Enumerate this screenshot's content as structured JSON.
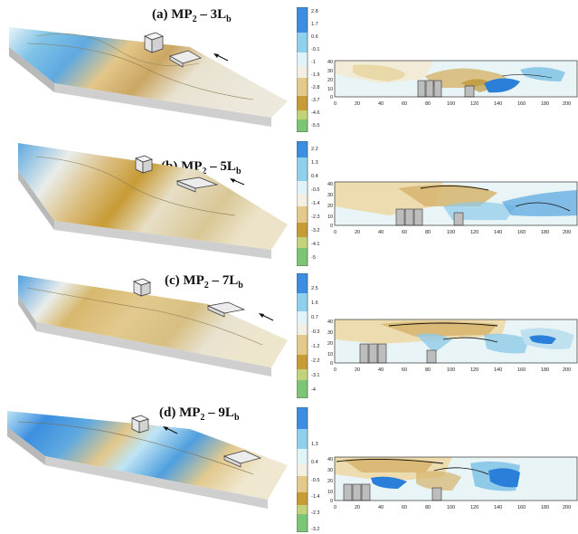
{
  "panels": [
    {
      "letter": "(a)",
      "mp": "MP",
      "mp_sub": "2",
      "spacing": "3L",
      "spacing_sub": "b",
      "colorbar": [
        "2.8",
        "1.7",
        "0.6",
        "-0.1",
        "-1",
        "-1.9",
        "-2.8",
        "-3.7",
        "-4.6",
        "-5.5"
      ],
      "y_ticks": [
        "40",
        "30",
        "20",
        "10",
        "0"
      ],
      "x_ticks": [
        "0",
        "20",
        "40",
        "60",
        "80",
        "100",
        "120",
        "140",
        "160",
        "180",
        "200"
      ]
    },
    {
      "letter": "(b)",
      "mp": "MP",
      "mp_sub": "2",
      "spacing": "5L",
      "spacing_sub": "b",
      "colorbar": [
        "2.2",
        "1.3",
        "0.4",
        "-0.5",
        "-1.4",
        "-2.3",
        "-3.2",
        "-4.1",
        "-5"
      ],
      "y_ticks": [
        "40",
        "30",
        "20",
        "10",
        "0"
      ],
      "x_ticks": [
        "0",
        "20",
        "40",
        "60",
        "80",
        "100",
        "120",
        "140",
        "160",
        "180",
        "200"
      ]
    },
    {
      "letter": "(c)",
      "mp": "MP",
      "mp_sub": "2",
      "spacing": "7L",
      "spacing_sub": "b",
      "colorbar": [
        "2.5",
        "1.6",
        "0.7",
        "-0.3",
        "-1.2",
        "-2.2",
        "-3.1",
        "-4"
      ],
      "y_ticks": [
        "40",
        "30",
        "20",
        "10",
        "0"
      ],
      "x_ticks": [
        "0",
        "20",
        "40",
        "60",
        "80",
        "100",
        "120",
        "140",
        "160",
        "180",
        "200"
      ]
    },
    {
      "letter": "(d)",
      "mp": "MP",
      "mp_sub": "2",
      "spacing": "9L",
      "spacing_sub": "b",
      "colorbar": [
        "1.3",
        "0.4",
        "-0.5",
        "-1.4",
        "-2.3",
        "-3.2"
      ],
      "y_ticks": [
        "40",
        "30",
        "20",
        "10",
        "0"
      ],
      "x_ticks": [
        "0",
        "20",
        "40",
        "60",
        "80",
        "100",
        "120",
        "140",
        "160",
        "180",
        "200"
      ]
    }
  ],
  "colors": {
    "deep_blue": "#1f6fd6",
    "light_blue": "#bfe4f4",
    "neutral": "#f3efe2",
    "tan": "#d9b878",
    "dark_tan": "#b88a1c",
    "green": "#7cc576",
    "base": "#c9c9c9"
  },
  "icons": [
    "flow-arrow-icon",
    "cube-icon",
    "plate-icon"
  ]
}
